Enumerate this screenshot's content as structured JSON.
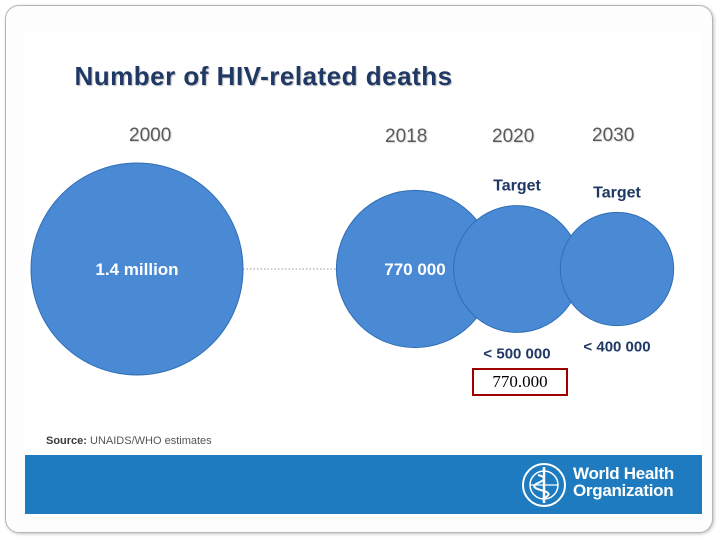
{
  "title": "Number of HIV-related deaths",
  "source_label": "Source:",
  "source_text": "UNAIDS/WHO  estimates",
  "organization": {
    "line1": "World Health",
    "line2": "Organization"
  },
  "annotation": "770.000",
  "colors": {
    "bubble": "#4a89d4",
    "bubble_dark": "#2f6eb5",
    "title": "#1f3864",
    "footer": "#1e7bbf",
    "annotation_border": "#a00000"
  },
  "chart_data": {
    "type": "bubble",
    "title": "Number of HIV-related deaths",
    "unit": "deaths",
    "points": [
      {
        "year": "2000",
        "kind": "",
        "value": 1400000,
        "label": "1.4 million"
      },
      {
        "year": "2018",
        "kind": "",
        "value": 770000,
        "label": "770 000"
      },
      {
        "year": "2020",
        "kind": "Target",
        "value": 500000,
        "label": "< 500 000"
      },
      {
        "year": "2030",
        "kind": "Target",
        "value": 400000,
        "label": "< 400 000"
      }
    ]
  }
}
